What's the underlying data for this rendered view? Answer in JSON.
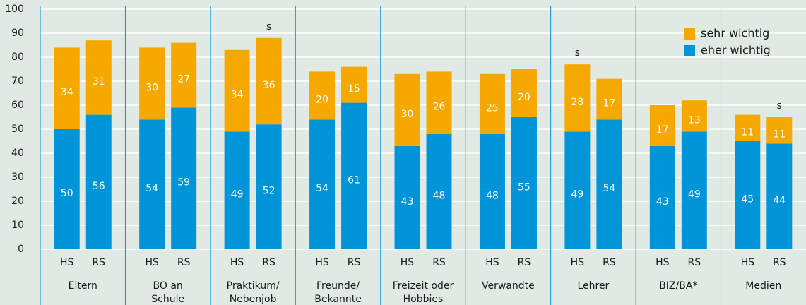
{
  "chart_data": {
    "type": "stacked_bar",
    "categories": [
      "HS",
      "RS",
      "HS",
      "RS",
      "HS",
      "RS",
      "HS",
      "RS",
      "HS",
      "RS",
      "HS",
      "RS",
      "HS",
      "RS",
      "HS",
      "RS",
      "HS",
      "RS"
    ],
    "groups": [
      [
        "Eltern"
      ],
      [
        "BO an",
        "Schule"
      ],
      [
        "Praktikum/",
        "Nebenjob"
      ],
      [
        "Freunde/",
        "Bekannte"
      ],
      [
        "Freizeit oder",
        "Hobbies"
      ],
      [
        "Verwandte"
      ],
      [
        "Lehrer"
      ],
      [
        "BIZ/BA*"
      ],
      [
        "Medien"
      ]
    ],
    "series": [
      {
        "name": "eher wichtig",
        "color": "#0095d9",
        "values": [
          50,
          56,
          54,
          59,
          49,
          52,
          54,
          61,
          43,
          48,
          48,
          55,
          49,
          54,
          43,
          49,
          45,
          44
        ]
      },
      {
        "name": "sehr wichtig",
        "color": "#f5a800",
        "values": [
          34,
          31,
          30,
          27,
          34,
          36,
          20,
          15,
          30,
          26,
          25,
          20,
          28,
          17,
          17,
          13,
          11,
          11
        ]
      }
    ],
    "annotations": [
      null,
      null,
      null,
      null,
      null,
      "s",
      null,
      null,
      null,
      null,
      null,
      null,
      "s",
      null,
      null,
      null,
      null,
      "s"
    ],
    "ylim": [
      0,
      100
    ],
    "yticks": [
      0,
      10,
      20,
      30,
      40,
      50,
      60,
      70,
      80,
      90,
      100
    ],
    "grid": true,
    "legend": "upper right"
  }
}
